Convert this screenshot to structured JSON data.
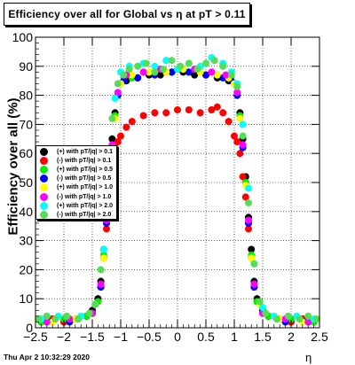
{
  "page": {
    "title": "Efficiency over all for Global vs   η at pT > 0.11",
    "timestamp": "Thu Apr  2 10:32:29 2020"
  },
  "chart_data": {
    "type": "scatter",
    "title": "Efficiency over all for Global vs   η at pT > 0.11",
    "xlabel": "η",
    "ylabel": "Efficiency over all (%)",
    "xlim": [
      -2.5,
      2.5
    ],
    "ylim": [
      0,
      100
    ],
    "xticks": [
      -2.5,
      -2,
      -1.5,
      -1,
      -0.5,
      0,
      0.5,
      1,
      1.5,
      2,
      2.5
    ],
    "xtick_labels": [
      "−2.5",
      "−2",
      "−1.5",
      "−1",
      "−0.5",
      "0",
      "0.5",
      "1",
      "1.5",
      "2",
      "2.5"
    ],
    "yticks": [
      0,
      10,
      20,
      30,
      40,
      50,
      60,
      70,
      80,
      90,
      100
    ],
    "ytick_labels": [
      "0",
      "10",
      "20",
      "30",
      "40",
      "50",
      "60",
      "70",
      "80",
      "90",
      "100"
    ],
    "grid": true,
    "legend_position": "left",
    "series": [
      {
        "name": "(+) with pT/|q| > 0.1",
        "color": "#000000",
        "x": [
          -2.4,
          -2.2,
          -2.0,
          -1.8,
          -1.6,
          -1.5,
          -1.4,
          -1.35,
          -1.3,
          -1.25,
          -1.2,
          -1.15,
          -1.1,
          -1.05,
          -1.0,
          -0.9,
          -0.7,
          -0.5,
          -0.3,
          -0.1,
          0.1,
          0.3,
          0.5,
          0.7,
          0.9,
          1.0,
          1.05,
          1.1,
          1.15,
          1.2,
          1.25,
          1.3,
          1.35,
          1.4,
          1.5,
          1.6,
          1.8,
          2.0,
          2.2,
          2.4
        ],
        "y": [
          2,
          3,
          2,
          3,
          4,
          6,
          10,
          16,
          27,
          38,
          52,
          65,
          74,
          80,
          84,
          85,
          86,
          87,
          87,
          88,
          88,
          87,
          87,
          86,
          85,
          84,
          80,
          74,
          65,
          52,
          38,
          27,
          16,
          10,
          6,
          4,
          3,
          2,
          3,
          2
        ]
      },
      {
        "name": "(-) with pT/|q| > 0.1",
        "color": "#ff0000",
        "x": [
          -2.4,
          -2.2,
          -2.0,
          -1.8,
          -1.6,
          -1.5,
          -1.4,
          -1.35,
          -1.3,
          -1.25,
          -1.2,
          -1.15,
          -1.1,
          -1.05,
          -1.0,
          -0.9,
          -0.8,
          -0.6,
          -0.4,
          -0.2,
          0.0,
          0.2,
          0.4,
          0.6,
          0.7,
          0.8,
          0.9,
          1.0,
          1.05,
          1.1,
          1.15,
          1.2,
          1.25,
          1.3,
          1.35,
          1.4,
          1.5,
          1.6,
          1.8,
          2.0,
          2.2,
          2.4
        ],
        "y": [
          2,
          3,
          2,
          3,
          4,
          5,
          9,
          14,
          24,
          34,
          46,
          56,
          62,
          64,
          66,
          69,
          71,
          73,
          74,
          74,
          75,
          75,
          74,
          75,
          76,
          74,
          71,
          66,
          64,
          60,
          52,
          45,
          34,
          24,
          14,
          9,
          5,
          4,
          3,
          2,
          3,
          2
        ]
      },
      {
        "name": "(+) with pT/|q| > 0.5",
        "color": "#00ee00",
        "x": [
          -2.4,
          -2.0,
          -1.6,
          -1.4,
          -1.3,
          -1.2,
          -1.1,
          -1.0,
          -0.8,
          -0.5,
          -0.2,
          0.1,
          0.4,
          0.7,
          0.9,
          1.0,
          1.1,
          1.2,
          1.3,
          1.4,
          1.6,
          2.0,
          2.4
        ],
        "y": [
          2,
          3,
          4,
          9,
          25,
          50,
          73,
          84,
          86,
          88,
          88,
          89,
          88,
          87,
          86,
          84,
          73,
          50,
          25,
          9,
          4,
          3,
          2
        ]
      },
      {
        "name": "(-) with pT/|q| > 0.5",
        "color": "#0000ff",
        "x": [
          -2.3,
          -1.9,
          -1.5,
          -1.35,
          -1.25,
          -1.15,
          -1.05,
          -0.95,
          -0.7,
          -0.4,
          -0.1,
          0.2,
          0.5,
          0.8,
          0.95,
          1.05,
          1.15,
          1.25,
          1.35,
          1.5,
          1.9,
          2.3
        ],
        "y": [
          3,
          2,
          5,
          14,
          36,
          62,
          80,
          85,
          86,
          87,
          88,
          88,
          87,
          86,
          85,
          80,
          62,
          36,
          14,
          5,
          2,
          3
        ]
      },
      {
        "name": "(+) with pT/|q| > 1.0",
        "color": "#ffff00",
        "x": [
          -2.2,
          -1.8,
          -1.45,
          -1.3,
          -1.2,
          -1.1,
          -1.0,
          -0.8,
          -0.5,
          -0.2,
          0.1,
          0.4,
          0.7,
          0.9,
          1.0,
          1.1,
          1.2,
          1.3,
          1.45,
          1.8,
          2.2
        ],
        "y": [
          2,
          3,
          8,
          24,
          49,
          72,
          84,
          87,
          88,
          88,
          89,
          88,
          87,
          86,
          84,
          72,
          49,
          24,
          8,
          3,
          2
        ]
      },
      {
        "name": "(-) with pT/|q| > 1.0",
        "color": "#ff00ff",
        "x": [
          -2.3,
          -1.9,
          -1.5,
          -1.35,
          -1.25,
          -1.15,
          -1.05,
          -0.9,
          -0.6,
          -0.3,
          0.0,
          0.3,
          0.6,
          0.85,
          1.05,
          1.15,
          1.25,
          1.35,
          1.5,
          1.9,
          2.3
        ],
        "y": [
          2,
          3,
          5,
          15,
          37,
          63,
          81,
          87,
          88,
          89,
          89,
          89,
          88,
          87,
          81,
          63,
          37,
          15,
          5,
          3,
          2
        ]
      },
      {
        "name": "(+) with pT/|q| > 2.0",
        "color": "#00ffff",
        "x": [
          -2.4,
          -2.1,
          -1.7,
          -1.45,
          -1.3,
          -1.2,
          -1.1,
          -1.0,
          -0.85,
          -0.6,
          -0.4,
          -0.2,
          0.0,
          0.2,
          0.4,
          0.6,
          0.8,
          0.95,
          1.05,
          1.15,
          1.25,
          1.35,
          1.5,
          1.7,
          2.1,
          2.4
        ],
        "y": [
          3,
          4,
          4,
          8,
          27,
          55,
          79,
          88,
          90,
          91,
          90,
          92,
          89,
          91,
          90,
          93,
          91,
          88,
          84,
          70,
          48,
          22,
          7,
          4,
          4,
          3
        ]
      },
      {
        "name": "(-) with pT/|q| > 2.0",
        "color": "#55dd55",
        "x": [
          -2.45,
          -2.3,
          -2.15,
          -1.95,
          -1.75,
          -1.55,
          -1.45,
          -1.35,
          -1.25,
          -1.15,
          -1.05,
          -0.95,
          -0.85,
          -0.7,
          -0.55,
          -0.4,
          -0.25,
          -0.1,
          0.05,
          0.2,
          0.35,
          0.5,
          0.65,
          0.8,
          0.95,
          1.05,
          1.15,
          1.25,
          1.35,
          1.45,
          1.55,
          1.75,
          1.95,
          2.15,
          2.3,
          2.45
        ],
        "y": [
          3,
          4,
          3,
          4,
          3,
          5,
          8,
          20,
          45,
          72,
          84,
          87,
          89,
          90,
          91,
          88,
          89,
          92,
          90,
          91,
          89,
          91,
          92,
          90,
          87,
          83,
          66,
          43,
          22,
          9,
          5,
          3,
          4,
          3,
          4,
          3
        ]
      }
    ]
  }
}
